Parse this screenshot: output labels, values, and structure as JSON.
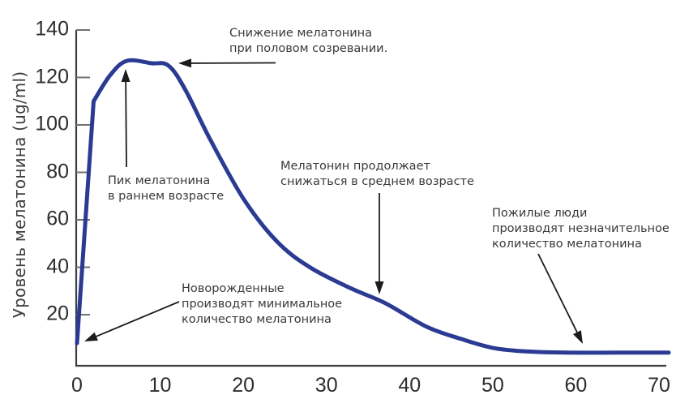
{
  "chart_data": {
    "type": "line",
    "title": "",
    "xlabel": "",
    "ylabel": "Уровень мелатонина (ug/ml)",
    "x_ticks": [
      0,
      10,
      20,
      30,
      40,
      50,
      60,
      70
    ],
    "y_ticks": [
      20,
      40,
      60,
      80,
      100,
      120,
      140
    ],
    "xlim": [
      0,
      70
    ],
    "ylim": [
      0,
      140
    ],
    "grid": false,
    "legend": "none",
    "series": [
      {
        "color": "#2b3a92",
        "points": [
          [
            0,
            8
          ],
          [
            2,
            110
          ],
          [
            4,
            121
          ],
          [
            6,
            127
          ],
          [
            9,
            126
          ],
          [
            11,
            125
          ],
          [
            13,
            115
          ],
          [
            16,
            94
          ],
          [
            20,
            69
          ],
          [
            24,
            51
          ],
          [
            28,
            40
          ],
          [
            33,
            31
          ],
          [
            37,
            25
          ],
          [
            42,
            15
          ],
          [
            46,
            10
          ],
          [
            50,
            6
          ],
          [
            54,
            4.5
          ],
          [
            59,
            4
          ],
          [
            65,
            4
          ],
          [
            70,
            4
          ]
        ]
      }
    ],
    "annotations": [
      {
        "id": "puberty",
        "lines": [
          "Снижение мелатонина",
          "при половом созревании."
        ]
      },
      {
        "id": "peak",
        "lines": [
          "Пик мелатонина",
          "в раннем возрасте"
        ]
      },
      {
        "id": "midlife",
        "lines": [
          "Мелатонин продолжает",
          "снижаться в среднем возрасте"
        ]
      },
      {
        "id": "elderly",
        "lines": [
          "Пожилые люди",
          "производят незначительное",
          "количество мелатонина"
        ]
      },
      {
        "id": "newborn",
        "lines": [
          "Новорожденные",
          "производят минимальное",
          "количество мелатонина"
        ]
      }
    ],
    "colors": {
      "curve": "#2b3a92",
      "axis": "#3f3f3f",
      "tick": "#707070",
      "arrow": "#1c1c1c",
      "text": "#3a3a3a"
    }
  }
}
